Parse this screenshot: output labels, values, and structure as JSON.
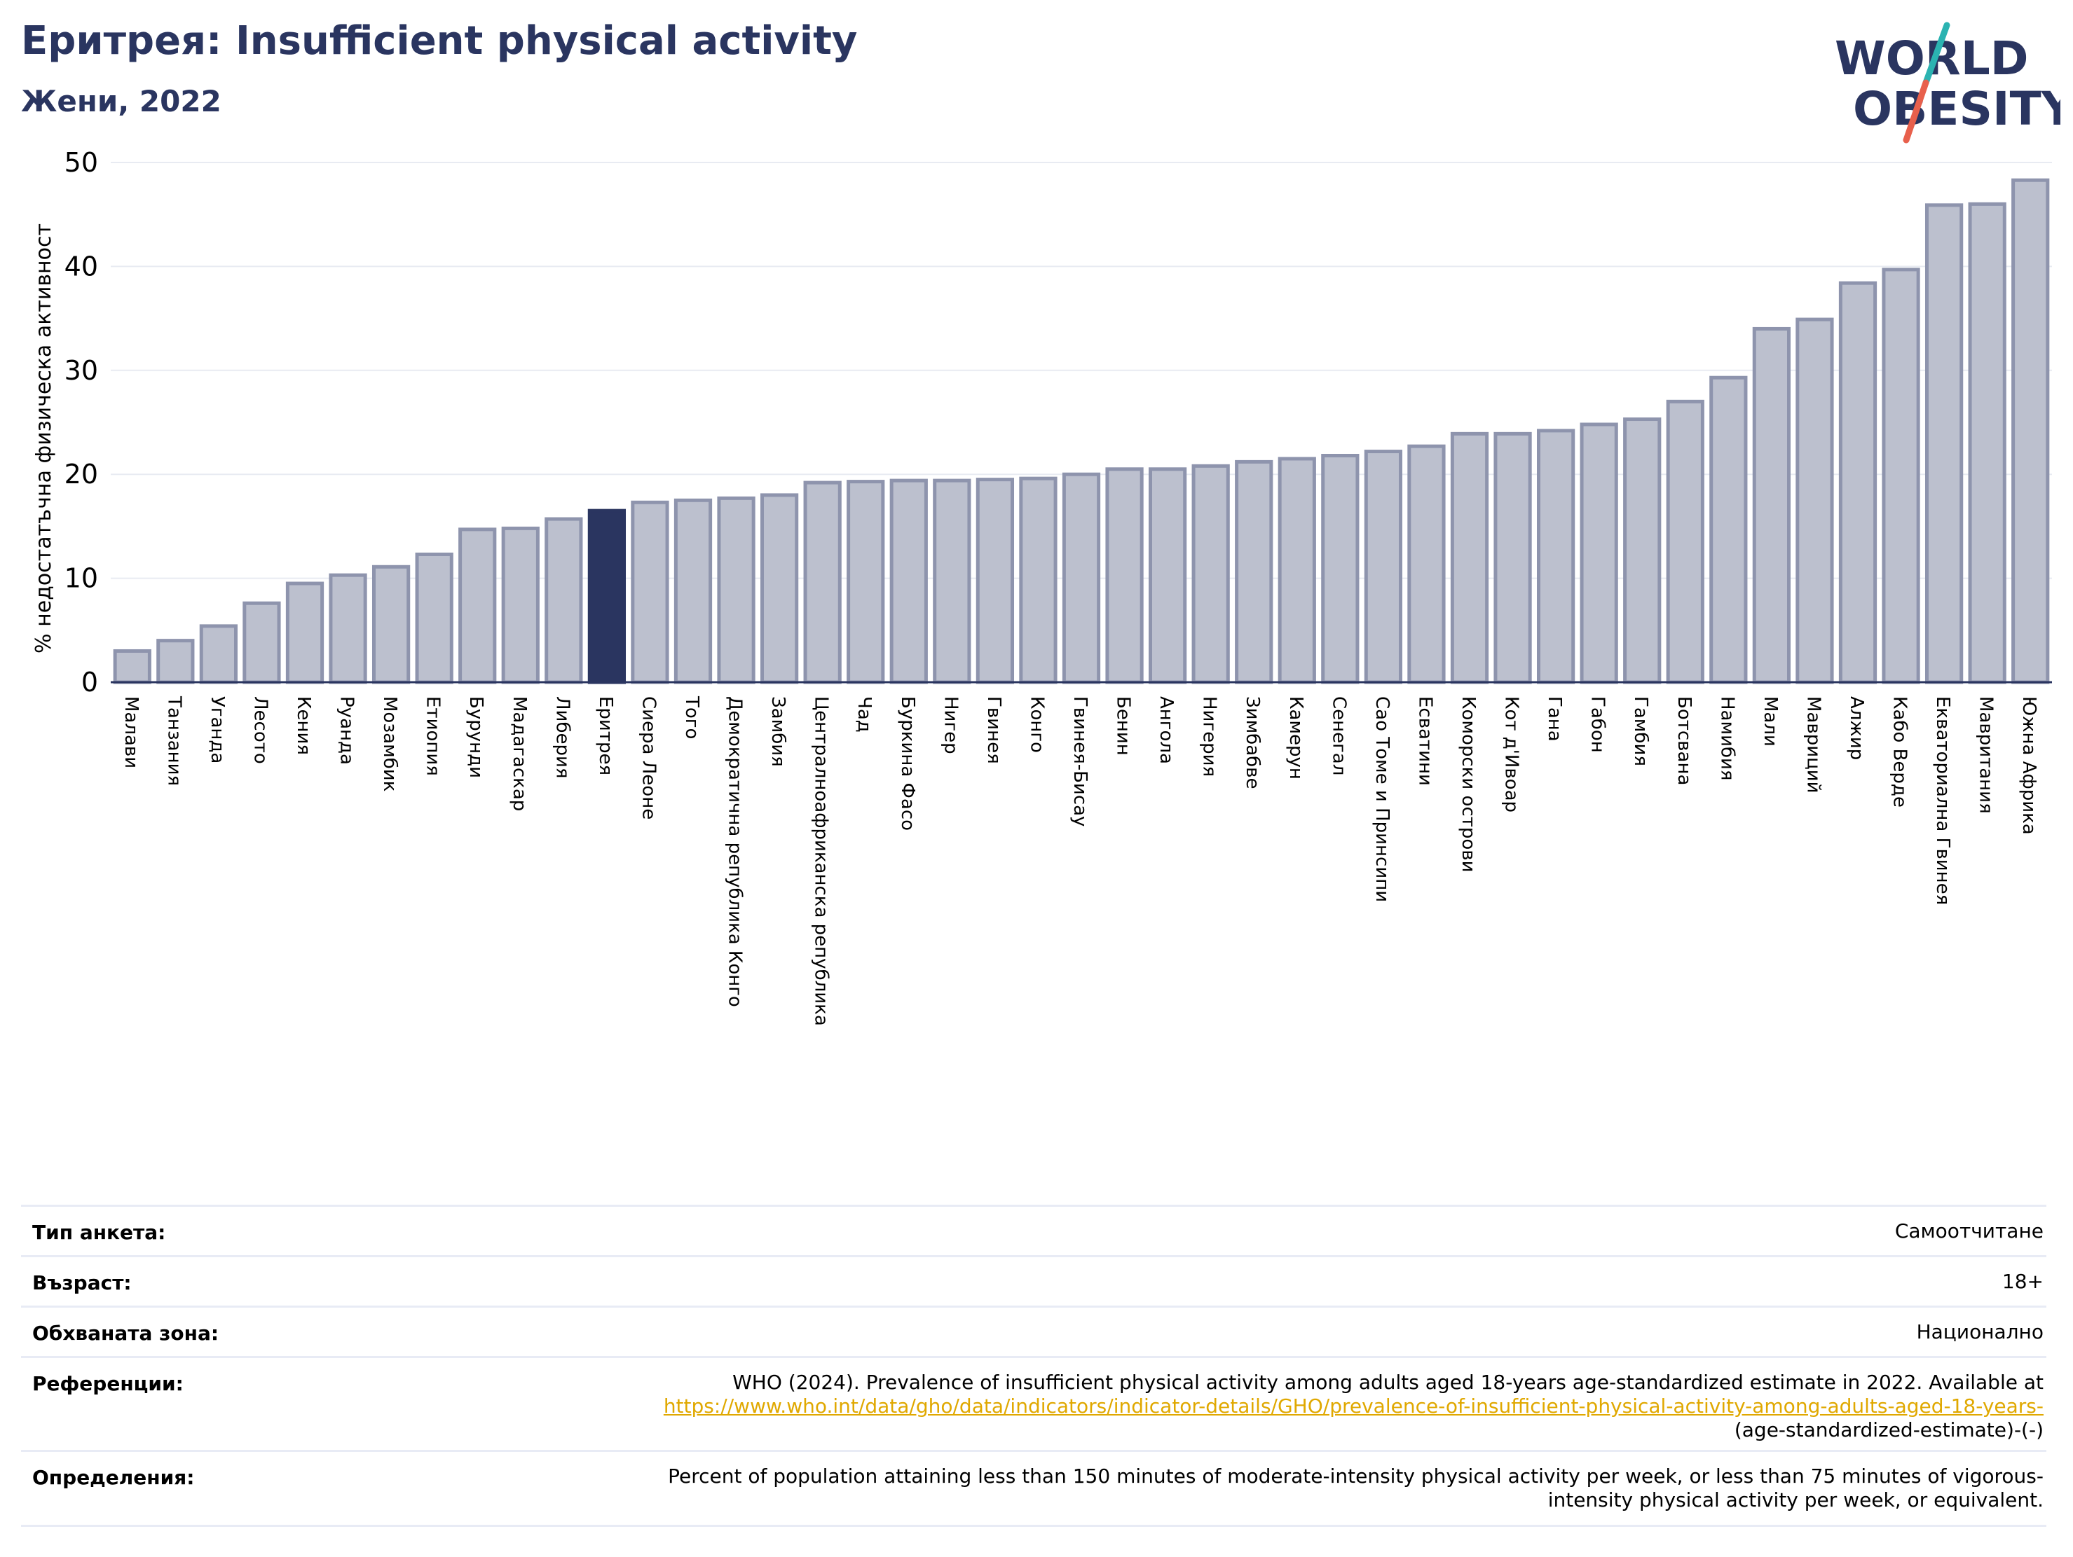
{
  "header": {
    "title": "Еритрея: Insufficient physical activity",
    "subtitle": "Жени, 2022"
  },
  "logo": {
    "line1": "WORLD",
    "line2": "OBESITY",
    "colors": {
      "text": "#2a3560",
      "slash_top": "#2bb3b1",
      "slash_bottom": "#e8604c"
    }
  },
  "colors": {
    "bar": "#bcc0ce",
    "bar_edge": "#8e94ad",
    "highlight": "#2a3560",
    "axis": "#2a3560",
    "grid": "#e8ebf2",
    "link": "#e0a800"
  },
  "chart_data": {
    "type": "bar",
    "ylabel": "% недостатъчна физическа активност",
    "ylim": [
      0,
      50
    ],
    "yticks": [
      0,
      10,
      20,
      30,
      40,
      50
    ],
    "grid": true,
    "highlight": "Еритрея",
    "categories": [
      "Малави",
      "Танзания",
      "Уганда",
      "Лесото",
      "Кения",
      "Руанда",
      "Мозамбик",
      "Етиопия",
      "Бурунди",
      "Мадагаскар",
      "Либерия",
      "Еритрея",
      "Сиера Леоне",
      "Того",
      "Демократична република Конго",
      "Замбия",
      "Централноафриканска република",
      "Чад",
      "Буркина Фасо",
      "Нигер",
      "Гвинея",
      "Конго",
      "Гвинея-Бисау",
      "Бенин",
      "Ангола",
      "Нигерия",
      "Зимбабве",
      "Камерун",
      "Сенегал",
      "Сао Томе и Принсипи",
      "Есватини",
      "Коморски острови",
      "Кот д'Ивоар",
      "Гана",
      "Габон",
      "Гамбия",
      "Ботсвана",
      "Намибия",
      "Мали",
      "Мавриций",
      "Алжир",
      "Кабо Верде",
      "Екваториална Гвинея",
      "Мавритания",
      "Южна Африка"
    ],
    "values": [
      3.0,
      4.0,
      5.4,
      7.6,
      9.5,
      10.3,
      11.1,
      12.3,
      14.7,
      14.8,
      15.7,
      16.5,
      17.3,
      17.5,
      17.7,
      18.0,
      19.2,
      19.3,
      19.4,
      19.4,
      19.5,
      19.6,
      20.0,
      20.5,
      20.5,
      20.8,
      21.2,
      21.5,
      21.8,
      22.2,
      22.7,
      23.9,
      23.9,
      24.2,
      24.8,
      25.3,
      27.0,
      29.3,
      34.0,
      34.9,
      38.4,
      39.7,
      45.9,
      46.0,
      48.3
    ]
  },
  "meta": {
    "rows": [
      {
        "label": "Тип анкета:",
        "value": "Самоотчитане"
      },
      {
        "label": "Възраст:",
        "value": "18+"
      },
      {
        "label": "Обхваната зона:",
        "value": "Национално"
      }
    ],
    "references": {
      "label": "Референции:",
      "text1": "WHO (2024). Prevalence of insufficient physical activity among adults aged 18-years age-standardized estimate in 2022. Available at",
      "link": "https://www.who.int/data/gho/data/indicators/indicator-details/GHO/prevalence-of-insufficient-physical-activity-among-adults-aged-18-years-",
      "text2": "(age-standardized-estimate)-(-)"
    },
    "definitions": {
      "label": "Определения:",
      "line1": "Percent of population attaining less than 150 minutes of moderate-intensity physical activity per week, or less than 75 minutes of vigorous-",
      "line2": "intensity physical activity per week, or equivalent."
    }
  }
}
